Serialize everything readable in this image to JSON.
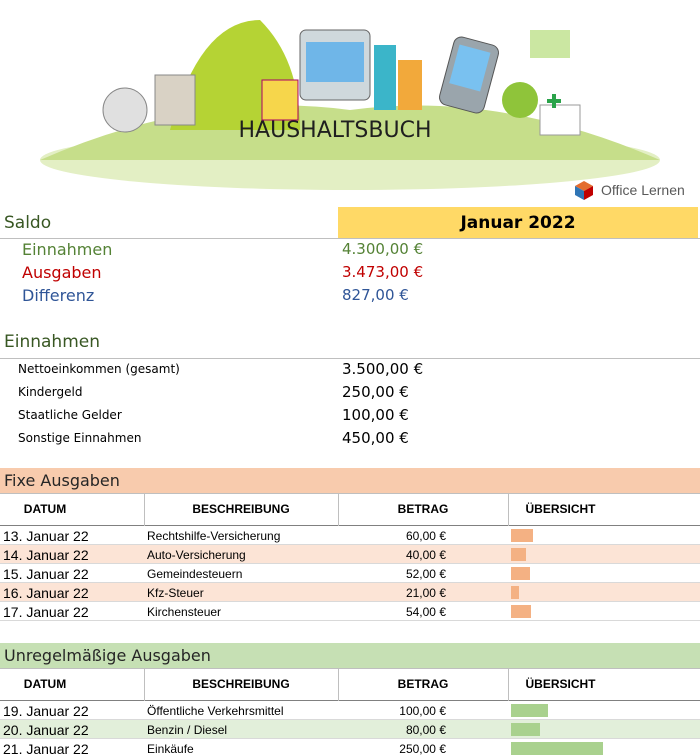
{
  "header": {
    "title": "HAUSHALTSBUCH",
    "brand": "Office Lernen"
  },
  "summary": {
    "heading": "Saldo",
    "month": "Januar 2022",
    "rows": [
      {
        "label": "Einnahmen",
        "value": "4.300,00 €"
      },
      {
        "label": "Ausgaben",
        "value": "3.473,00 €"
      },
      {
        "label": "Differenz",
        "value": "827,00 €"
      }
    ]
  },
  "income": {
    "heading": "Einnahmen",
    "rows": [
      {
        "label": "Nettoeinkommen (gesamt)",
        "value": "3.500,00 €"
      },
      {
        "label": "Kindergeld",
        "value": "250,00 €"
      },
      {
        "label": "Staatliche Gelder",
        "value": "100,00 €"
      },
      {
        "label": "Sonstige Einnahmen",
        "value": "450,00 €"
      }
    ]
  },
  "fixed": {
    "heading": "Fixe Ausgaben",
    "columns": [
      "DATUM",
      "BESCHREIBUNG",
      "BETRAG",
      "ÜBERSICHT"
    ],
    "rows": [
      {
        "date": "13. Januar 22",
        "description": "Rechtshilfe-Versicherung",
        "amount": 60,
        "amount_label": "60,00 €"
      },
      {
        "date": "14. Januar 22",
        "description": "Auto-Versicherung",
        "amount": 40,
        "amount_label": "40,00 €"
      },
      {
        "date": "15. Januar 22",
        "description": "Gemeindesteuern",
        "amount": 52,
        "amount_label": "52,00 €"
      },
      {
        "date": "16. Januar 22",
        "description": "Kfz-Steuer",
        "amount": 21,
        "amount_label": "21,00 €"
      },
      {
        "date": "17. Januar 22",
        "description": "Kirchensteuer",
        "amount": 54,
        "amount_label": "54,00 €"
      }
    ]
  },
  "irregular": {
    "heading": "Unregelmäßige Ausgaben",
    "columns": [
      "DATUM",
      "BESCHREIBUNG",
      "BETRAG",
      "ÜBERSICHT"
    ],
    "rows": [
      {
        "date": "19. Januar 22",
        "description": "Öffentliche Verkehrsmittel",
        "amount": 100,
        "amount_label": "100,00 €"
      },
      {
        "date": "20. Januar 22",
        "description": "Benzin / Diesel",
        "amount": 80,
        "amount_label": "80,00 €"
      },
      {
        "date": "21. Januar 22",
        "description": "Einkäufe",
        "amount": 250,
        "amount_label": "250,00 €"
      }
    ]
  }
}
